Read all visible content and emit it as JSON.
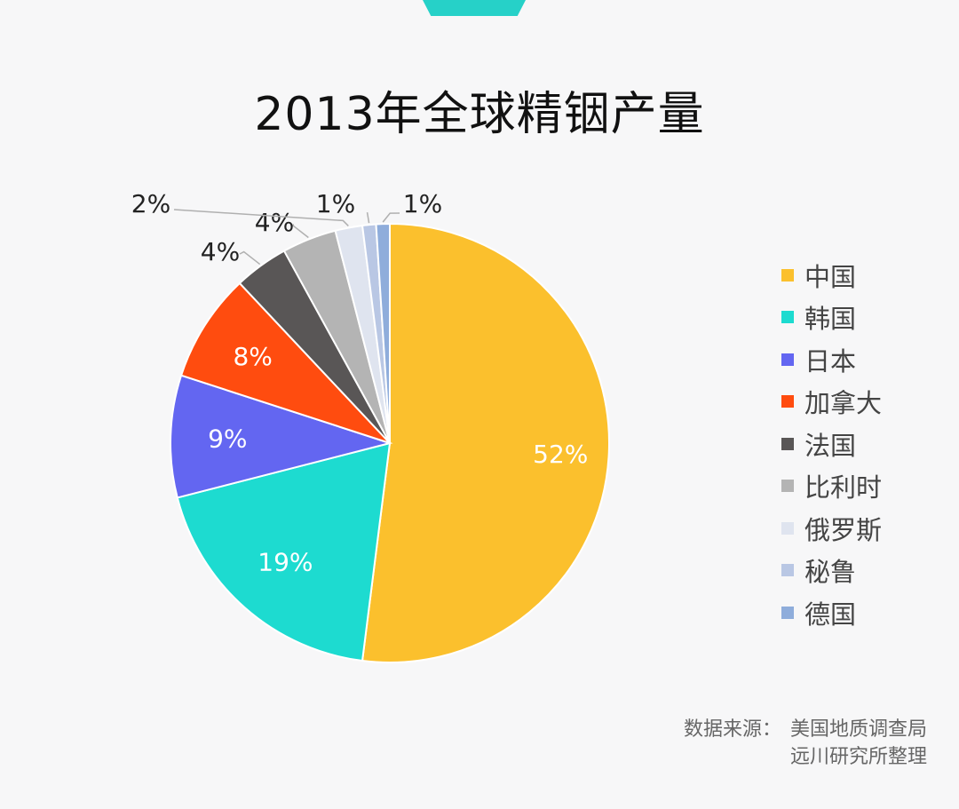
{
  "page": {
    "title": "2013年全球精铟产量"
  },
  "chart_data": {
    "type": "pie",
    "title": "2013年全球精铟产量",
    "categories": [
      "中国",
      "韩国",
      "日本",
      "加拿大",
      "法国",
      "比利时",
      "俄罗斯",
      "秘鲁",
      "德国"
    ],
    "values": [
      52,
      19,
      9,
      8,
      4,
      4,
      2,
      1,
      1
    ],
    "data_labels": [
      "52%",
      "19%",
      "9%",
      "8%",
      "4%",
      "4%",
      "2%",
      "1%",
      "1%"
    ],
    "colors": [
      "#fbc02d",
      "#1ddbd0",
      "#6366f1",
      "#ff4c0f",
      "#595656",
      "#b4b4b4",
      "#dfe4ef",
      "#b9c7e4",
      "#8faddb"
    ],
    "legend_position": "right",
    "label_colors": [
      "#ffffff",
      "#ffffff",
      "#ffffff",
      "#ffffff",
      "#222222",
      "#222222",
      "#222222",
      "#222222",
      "#222222"
    ]
  },
  "source": {
    "label": "数据来源：",
    "lines": [
      "美国地质调查局",
      "远川研究所整理"
    ]
  }
}
